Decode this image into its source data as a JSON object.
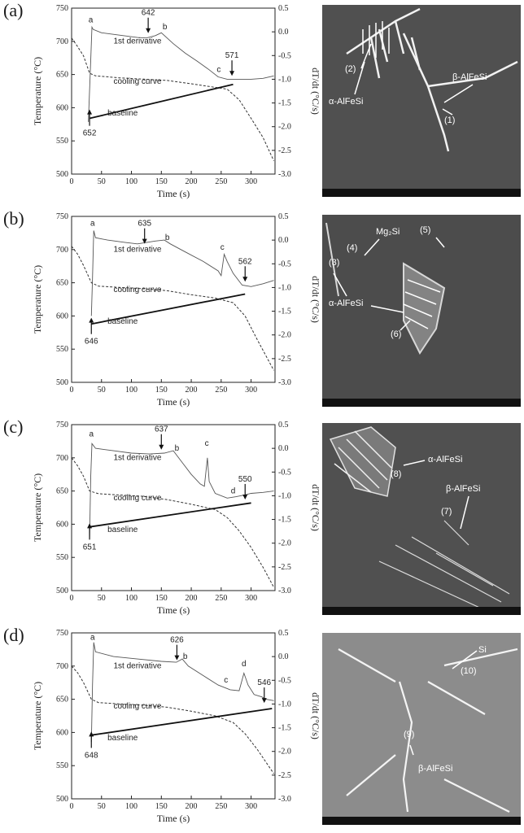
{
  "chart_data": [
    {
      "type": "line",
      "panel_label": "(a)",
      "xlabel": "Time (s)",
      "ylabel_left": "Temperature (°C)",
      "ylabel_right": "dT/dt (°C/s)",
      "xlim": [
        0,
        340
      ],
      "ylim_left": [
        500,
        750
      ],
      "ylim_right": [
        -3.0,
        0.5
      ],
      "x_ticks": [
        "0",
        "50",
        "100",
        "150",
        "200",
        "250",
        "300"
      ],
      "y_left_ticks": [
        "500",
        "550",
        "600",
        "650",
        "700",
        "750"
      ],
      "y_right_ticks": [
        "0.5",
        "0.0",
        "-0.5",
        "-1.0",
        "-1.5",
        "-2.0",
        "-2.5",
        "-3.0"
      ],
      "series": [
        {
          "name": "1st derivative",
          "axis": "right",
          "style": "solid-thin",
          "points": [
            [
              28,
              -1.9
            ],
            [
              32,
              -0.6
            ],
            [
              34,
              0.1
            ],
            [
              36,
              0.05
            ],
            [
              50,
              -0.02
            ],
            [
              80,
              -0.07
            ],
            [
              110,
              -0.12
            ],
            [
              125,
              -0.13
            ],
            [
              140,
              -0.08
            ],
            [
              150,
              -0.02
            ],
            [
              170,
              -0.25
            ],
            [
              190,
              -0.45
            ],
            [
              210,
              -0.62
            ],
            [
              230,
              -0.8
            ],
            [
              245,
              -0.95
            ],
            [
              260,
              -1.0
            ],
            [
              280,
              -1.0
            ],
            [
              300,
              -1.0
            ],
            [
              320,
              -0.98
            ],
            [
              338,
              -0.93
            ]
          ]
        },
        {
          "name": "cooling curve",
          "axis": "left",
          "style": "dashed",
          "points": [
            [
              0,
              705
            ],
            [
              10,
              692
            ],
            [
              20,
              678
            ],
            [
              30,
              652
            ],
            [
              40,
              648
            ],
            [
              80,
              645
            ],
            [
              120,
              643
            ],
            [
              160,
              641
            ],
            [
              200,
              636
            ],
            [
              230,
              632
            ],
            [
              260,
              628
            ],
            [
              280,
              612
            ],
            [
              300,
              584
            ],
            [
              320,
              555
            ],
            [
              338,
              520
            ]
          ]
        },
        {
          "name": "baseline",
          "axis": "left",
          "style": "solid-thick",
          "points": [
            [
              30,
              584
            ],
            [
              270,
              635
            ]
          ]
        }
      ],
      "annotations": [
        {
          "text": "a",
          "x": 32,
          "y": 0.2
        },
        {
          "text": "642",
          "x": 128,
          "y": 0.35
        },
        {
          "text": "b",
          "x": 156,
          "y": 0.05
        },
        {
          "text": "c",
          "x": 246,
          "y": -0.85
        },
        {
          "text": "571",
          "x": 268,
          "y": -0.55
        },
        {
          "text": "652",
          "x": 30,
          "y": 558
        }
      ]
    },
    {
      "type": "line",
      "panel_label": "(b)",
      "xlabel": "Time (s)",
      "ylabel_left": "Temperature (°C)",
      "ylabel_right": "dT/dt (°C/s)",
      "xlim": [
        0,
        340
      ],
      "ylim_left": [
        500,
        750
      ],
      "ylim_right": [
        -3.0,
        0.5
      ],
      "x_ticks": [
        "0",
        "50",
        "100",
        "150",
        "200",
        "250",
        "300"
      ],
      "y_left_ticks": [
        "500",
        "550",
        "600",
        "650",
        "700",
        "750"
      ],
      "y_right_ticks": [
        "0.5",
        "0.0",
        "-0.5",
        "-1.0",
        "-1.5",
        "-2.0",
        "-2.5",
        "-3.0"
      ],
      "series": [
        {
          "name": "1st derivative",
          "axis": "right",
          "style": "solid-thin",
          "points": [
            [
              33,
              -1.6
            ],
            [
              35,
              -0.8
            ],
            [
              37,
              0.2
            ],
            [
              40,
              0.05
            ],
            [
              60,
              0.0
            ],
            [
              90,
              -0.05
            ],
            [
              110,
              -0.08
            ],
            [
              125,
              -0.05
            ],
            [
              140,
              -0.02
            ],
            [
              155,
              0.0
            ],
            [
              165,
              -0.08
            ],
            [
              190,
              -0.25
            ],
            [
              220,
              -0.45
            ],
            [
              245,
              -0.65
            ],
            [
              250,
              -0.75
            ],
            [
              255,
              -0.3
            ],
            [
              260,
              -0.45
            ],
            [
              270,
              -0.7
            ],
            [
              285,
              -0.95
            ],
            [
              300,
              -0.98
            ],
            [
              320,
              -0.92
            ],
            [
              338,
              -0.85
            ]
          ]
        },
        {
          "name": "cooling curve",
          "axis": "left",
          "style": "dashed",
          "points": [
            [
              0,
              705
            ],
            [
              10,
              693
            ],
            [
              20,
              676
            ],
            [
              33,
              650
            ],
            [
              45,
              645
            ],
            [
              80,
              643
            ],
            [
              120,
              641
            ],
            [
              160,
              638
            ],
            [
              200,
              632
            ],
            [
              240,
              627
            ],
            [
              270,
              620
            ],
            [
              290,
              600
            ],
            [
              310,
              565
            ],
            [
              338,
              518
            ]
          ]
        },
        {
          "name": "baseline",
          "axis": "left",
          "style": "solid-thick",
          "points": [
            [
              33,
              588
            ],
            [
              290,
              633
            ]
          ]
        }
      ],
      "annotations": [
        {
          "text": "a",
          "x": 35,
          "y": 0.3
        },
        {
          "text": "635",
          "x": 122,
          "y": 0.3
        },
        {
          "text": "b",
          "x": 160,
          "y": 0.0
        },
        {
          "text": "c",
          "x": 252,
          "y": -0.2
        },
        {
          "text": "562",
          "x": 290,
          "y": -0.5
        },
        {
          "text": "646",
          "x": 33,
          "y": 558
        }
      ]
    },
    {
      "type": "line",
      "panel_label": "(c)",
      "xlabel": "Time (s)",
      "ylabel_left": "Temperature (°C)",
      "ylabel_right": "dT/dt (°C/s)",
      "xlim": [
        0,
        340
      ],
      "ylim_left": [
        500,
        750
      ],
      "ylim_right": [
        -3.0,
        0.5
      ],
      "x_ticks": [
        "0",
        "50",
        "100",
        "150",
        "200",
        "250",
        "300"
      ],
      "y_left_ticks": [
        "500",
        "550",
        "600",
        "650",
        "700",
        "750"
      ],
      "y_right_ticks": [
        "0.5",
        "0.0",
        "-0.5",
        "-1.0",
        "-1.5",
        "-2.0",
        "-2.5",
        "-3.0"
      ],
      "series": [
        {
          "name": "1st derivative",
          "axis": "right",
          "style": "solid-thin",
          "points": [
            [
              30,
              -1.9
            ],
            [
              32,
              -0.6
            ],
            [
              34,
              0.1
            ],
            [
              40,
              0.0
            ],
            [
              70,
              -0.05
            ],
            [
              100,
              -0.1
            ],
            [
              130,
              -0.12
            ],
            [
              155,
              -0.1
            ],
            [
              170,
              -0.05
            ],
            [
              185,
              -0.3
            ],
            [
              200,
              -0.55
            ],
            [
              215,
              -0.75
            ],
            [
              222,
              -0.8
            ],
            [
              227,
              -0.2
            ],
            [
              230,
              -0.7
            ],
            [
              240,
              -0.95
            ],
            [
              260,
              -1.05
            ],
            [
              275,
              -1.02
            ],
            [
              290,
              -0.98
            ],
            [
              300,
              -0.95
            ],
            [
              320,
              -0.93
            ],
            [
              338,
              -0.9
            ]
          ]
        },
        {
          "name": "cooling curve",
          "axis": "left",
          "style": "dashed",
          "points": [
            [
              0,
              700
            ],
            [
              10,
              688
            ],
            [
              20,
              672
            ],
            [
              30,
              650
            ],
            [
              45,
              646
            ],
            [
              80,
              644
            ],
            [
              120,
              642
            ],
            [
              160,
              637
            ],
            [
              200,
              630
            ],
            [
              240,
              622
            ],
            [
              260,
              610
            ],
            [
              280,
              590
            ],
            [
              300,
              565
            ],
            [
              320,
              535
            ],
            [
              338,
              505
            ]
          ]
        },
        {
          "name": "baseline",
          "axis": "left",
          "style": "solid-thick",
          "points": [
            [
              30,
              596
            ],
            [
              300,
              632
            ]
          ]
        }
      ],
      "annotations": [
        {
          "text": "a",
          "x": 33,
          "y": 0.25
        },
        {
          "text": "637",
          "x": 150,
          "y": 0.35
        },
        {
          "text": "b",
          "x": 176,
          "y": -0.05
        },
        {
          "text": "c",
          "x": 226,
          "y": 0.05
        },
        {
          "text": "d",
          "x": 270,
          "y": -0.95
        },
        {
          "text": "550",
          "x": 290,
          "y": -0.7
        },
        {
          "text": "651",
          "x": 30,
          "y": 562
        }
      ]
    },
    {
      "type": "line",
      "panel_label": "(d)",
      "xlabel": "Time (s)",
      "ylabel_left": "Temperature (°C)",
      "ylabel_right": "dT/dt (°C/s)",
      "xlim": [
        0,
        340
      ],
      "ylim_left": [
        500,
        750
      ],
      "ylim_right": [
        -3.0,
        0.5
      ],
      "x_ticks": [
        "0",
        "50",
        "100",
        "150",
        "200",
        "250",
        "300"
      ],
      "y_left_ticks": [
        "500",
        "550",
        "600",
        "650",
        "700",
        "750"
      ],
      "y_right_ticks": [
        "0.5",
        "0.0",
        "-0.5",
        "-1.0",
        "-1.5",
        "-2.0",
        "-2.5",
        "-3.0"
      ],
      "series": [
        {
          "name": "1st derivative",
          "axis": "right",
          "style": "solid-thin",
          "points": [
            [
              33,
              -1.8
            ],
            [
              35,
              -0.6
            ],
            [
              37,
              0.3
            ],
            [
              40,
              0.1
            ],
            [
              70,
              0.0
            ],
            [
              110,
              -0.05
            ],
            [
              150,
              -0.1
            ],
            [
              175,
              -0.12
            ],
            [
              185,
              -0.05
            ],
            [
              195,
              -0.2
            ],
            [
              220,
              -0.4
            ],
            [
              245,
              -0.6
            ],
            [
              265,
              -0.7
            ],
            [
              280,
              -0.72
            ],
            [
              288,
              -0.35
            ],
            [
              295,
              -0.6
            ],
            [
              305,
              -0.8
            ],
            [
              318,
              -0.85
            ],
            [
              325,
              -0.9
            ],
            [
              338,
              -0.93
            ]
          ]
        },
        {
          "name": "cooling curve",
          "axis": "left",
          "style": "dashed",
          "points": [
            [
              0,
              700
            ],
            [
              10,
              690
            ],
            [
              20,
              675
            ],
            [
              33,
              650
            ],
            [
              45,
              645
            ],
            [
              80,
              643
            ],
            [
              120,
              641
            ],
            [
              160,
              638
            ],
            [
              200,
              632
            ],
            [
              240,
              625
            ],
            [
              270,
              615
            ],
            [
              290,
              598
            ],
            [
              310,
              575
            ],
            [
              325,
              555
            ],
            [
              338,
              538
            ]
          ]
        },
        {
          "name": "baseline",
          "axis": "left",
          "style": "solid-thick",
          "points": [
            [
              33,
              596
            ],
            [
              335,
              636
            ]
          ]
        }
      ],
      "annotations": [
        {
          "text": "a",
          "x": 35,
          "y": 0.35
        },
        {
          "text": "626",
          "x": 176,
          "y": 0.3
        },
        {
          "text": "b",
          "x": 190,
          "y": -0.05
        },
        {
          "text": "c",
          "x": 258,
          "y": -0.55
        },
        {
          "text": "d",
          "x": 288,
          "y": -0.2
        },
        {
          "text": "546",
          "x": 322,
          "y": -0.6
        },
        {
          "text": "648",
          "x": 33,
          "y": 562
        }
      ]
    }
  ],
  "sem_panels": [
    {
      "labels": [
        "(2)",
        "β-AlFeSi",
        "α-AlFeSi",
        "(1)"
      ]
    },
    {
      "labels": [
        "Mg₂Si",
        "(5)",
        "(4)",
        "(3)",
        "α-AlFeSi",
        "(6)"
      ]
    },
    {
      "labels": [
        "α-AlFeSi",
        "(8)",
        "β-AlFeSi",
        "(7)"
      ]
    },
    {
      "labels": [
        "Si",
        "(10)",
        "(9)",
        "β-AlFeSi"
      ]
    }
  ]
}
